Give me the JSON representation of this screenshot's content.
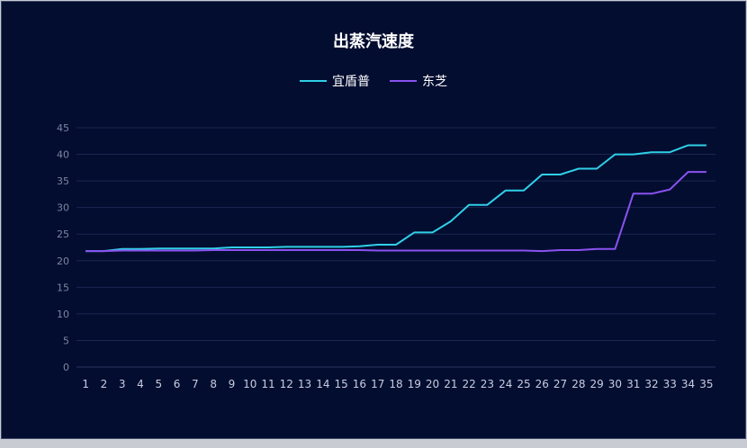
{
  "chart_data": {
    "type": "line",
    "title": "出蒸汽速度",
    "xlabel": "",
    "ylabel": "",
    "ylim": [
      0,
      45
    ],
    "yticks": [
      0,
      5,
      10,
      15,
      20,
      25,
      30,
      35,
      40,
      45
    ],
    "grid": true,
    "legend_position": "top-center",
    "categories": [
      "1",
      "2",
      "3",
      "4",
      "5",
      "6",
      "7",
      "8",
      "9",
      "10",
      "11",
      "12",
      "13",
      "14",
      "15",
      "16",
      "17",
      "18",
      "19",
      "20",
      "21",
      "22",
      "23",
      "24",
      "25",
      "26",
      "27",
      "28",
      "29",
      "30",
      "31",
      "32",
      "33",
      "34",
      "35"
    ],
    "series": [
      {
        "name": "宜盾普",
        "color": "#2fd0e8",
        "values": [
          21.8,
          21.8,
          22.2,
          22.2,
          22.3,
          22.3,
          22.3,
          22.3,
          22.5,
          22.5,
          22.5,
          22.6,
          22.6,
          22.6,
          22.6,
          22.7,
          23.0,
          23.0,
          25.3,
          25.3,
          27.4,
          30.5,
          30.5,
          33.2,
          33.2,
          36.2,
          36.2,
          37.3,
          37.3,
          40.0,
          40.0,
          40.4,
          40.4,
          41.7,
          41.7
        ]
      },
      {
        "name": "东芝",
        "color": "#8a52f0",
        "values": [
          21.8,
          21.8,
          21.9,
          21.9,
          21.9,
          21.9,
          21.9,
          22.0,
          22.0,
          22.0,
          22.0,
          22.0,
          22.0,
          22.0,
          22.0,
          22.0,
          21.9,
          21.9,
          21.9,
          21.9,
          21.9,
          21.9,
          21.9,
          21.9,
          21.9,
          21.8,
          22.0,
          22.0,
          22.2,
          22.2,
          32.6,
          32.6,
          33.4,
          36.7,
          36.7
        ]
      }
    ]
  }
}
